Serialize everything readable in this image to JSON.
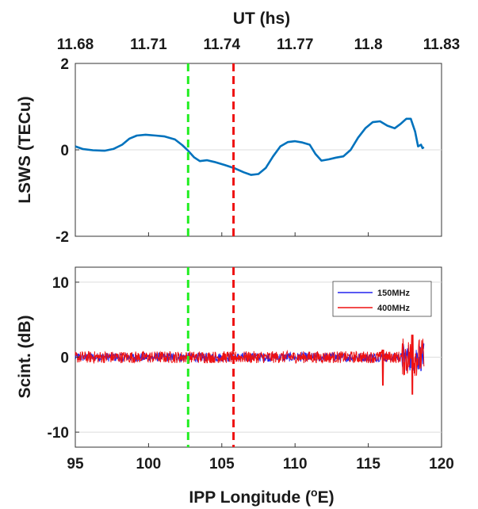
{
  "chart_data": [
    {
      "type": "line",
      "top_axis": {
        "label": "UT (hs)",
        "ticks": [
          "11.68",
          "11.71",
          "11.74",
          "11.77",
          "11.8",
          "11.83"
        ],
        "tick_positions_lon": [
          95,
          100,
          105,
          110,
          115,
          120
        ]
      },
      "xlim": [
        95,
        120
      ],
      "ylim": [
        -2,
        2
      ],
      "ylabel": "LSWS (TECu)",
      "yticks": [
        "-2",
        "0",
        "2"
      ],
      "ytick_values": [
        -2,
        0,
        2
      ],
      "series": [
        {
          "color": "#0072BD",
          "points": [
            [
              95,
              0.08
            ],
            [
              95.5,
              0.02
            ],
            [
              96.2,
              -0.01
            ],
            [
              97,
              -0.02
            ],
            [
              97.6,
              0.02
            ],
            [
              98.2,
              0.12
            ],
            [
              98.7,
              0.26
            ],
            [
              99.2,
              0.33
            ],
            [
              99.8,
              0.35
            ],
            [
              100.5,
              0.33
            ],
            [
              101.1,
              0.31
            ],
            [
              101.8,
              0.24
            ],
            [
              102.3,
              0.11
            ],
            [
              102.7,
              -0.02
            ],
            [
              103.1,
              -0.17
            ],
            [
              103.5,
              -0.26
            ],
            [
              104,
              -0.24
            ],
            [
              104.5,
              -0.28
            ],
            [
              105.2,
              -0.35
            ],
            [
              105.9,
              -0.43
            ],
            [
              106.5,
              -0.52
            ],
            [
              107,
              -0.58
            ],
            [
              107.5,
              -0.56
            ],
            [
              108,
              -0.42
            ],
            [
              108.5,
              -0.15
            ],
            [
              109,
              0.08
            ],
            [
              109.5,
              0.18
            ],
            [
              110,
              0.2
            ],
            [
              110.5,
              0.17
            ],
            [
              111,
              0.12
            ],
            [
              111.4,
              -0.1
            ],
            [
              111.8,
              -0.25
            ],
            [
              112.3,
              -0.22
            ],
            [
              112.8,
              -0.18
            ],
            [
              113.3,
              -0.15
            ],
            [
              113.8,
              0.0
            ],
            [
              114.3,
              0.28
            ],
            [
              114.8,
              0.5
            ],
            [
              115.3,
              0.64
            ],
            [
              115.8,
              0.66
            ],
            [
              116.3,
              0.56
            ],
            [
              116.8,
              0.5
            ],
            [
              117.2,
              0.6
            ],
            [
              117.6,
              0.72
            ],
            [
              117.9,
              0.72
            ],
            [
              118.2,
              0.42
            ],
            [
              118.4,
              0.08
            ],
            [
              118.6,
              0.12
            ],
            [
              118.7,
              0.04
            ],
            [
              118.8,
              0.06
            ]
          ]
        }
      ],
      "vlines": [
        {
          "x": 102.7,
          "color": "#22ee22",
          "style": "dashed"
        },
        {
          "x": 105.8,
          "color": "#ee1111",
          "style": "dashed"
        }
      ],
      "grid": "horizontal zero line"
    },
    {
      "type": "line",
      "xlim": [
        95,
        120
      ],
      "ylim": [
        -12,
        12
      ],
      "xlabel": "IPP Longitude",
      "xlabel_superscript": "o",
      "xlabel_unit": "E",
      "xticks": [
        "95",
        "100",
        "105",
        "110",
        "115",
        "120"
      ],
      "xtick_values": [
        95,
        100,
        105,
        110,
        115,
        120
      ],
      "ylabel": "Scint. (dB)",
      "yticks": [
        "-10",
        "0",
        "10"
      ],
      "ytick_values": [
        -10,
        0,
        10
      ],
      "legend": {
        "placement": "top-right"
      },
      "series": [
        {
          "name": "150MHz",
          "color": "#2222ee",
          "x_range": [
            95,
            118.8
          ],
          "typical_amplitude_db": 0.6
        },
        {
          "name": "400MHz",
          "color": "#ee1111",
          "x_range": [
            95,
            118.8
          ],
          "typical_amplitude_db": 0.8
        }
      ],
      "spikes": [
        {
          "x": 116.0,
          "min_db": -3.8
        },
        {
          "x": 118.0,
          "min_db": -5.0,
          "max_db": 3.0
        }
      ],
      "vlines": [
        {
          "x": 102.7,
          "color": "#22ee22",
          "style": "dashed"
        },
        {
          "x": 105.8,
          "color": "#ee1111",
          "style": "dashed"
        }
      ],
      "grid": "horizontal gridlines"
    }
  ]
}
